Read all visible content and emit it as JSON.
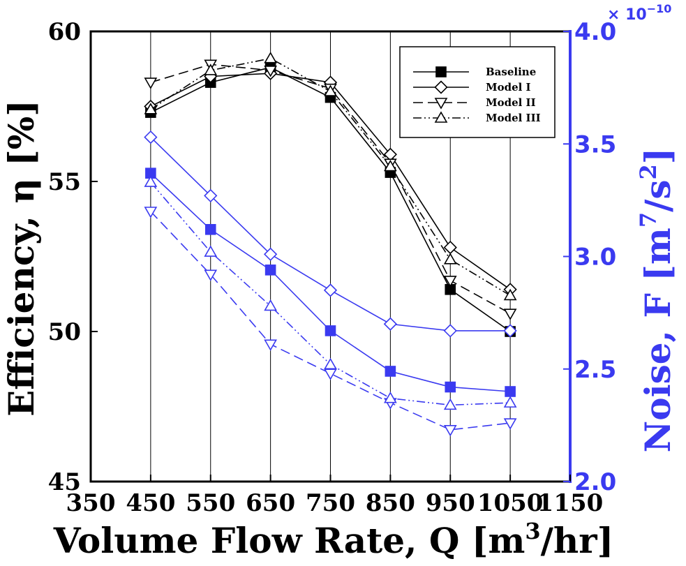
{
  "chart_data": {
    "type": "line",
    "x": [
      450,
      550,
      650,
      750,
      850,
      950,
      1050
    ],
    "xlabel": "Volume Flow Rate, Q [m³/hr]",
    "xlabel_parts": {
      "main": "Volume Flow Rate, Q [m",
      "sup": "3",
      "tail": "/hr]"
    },
    "xlim": [
      350,
      1150
    ],
    "xticks": [
      350,
      450,
      550,
      650,
      750,
      850,
      950,
      1050,
      1150
    ],
    "xtick_labels": [
      "350",
      "450",
      "550",
      "650",
      "750",
      "850",
      "950",
      "1050",
      "1150"
    ],
    "y_left": {
      "label": "Efficiency, η [%]",
      "lim": [
        45,
        60
      ],
      "ticks": [
        45,
        50,
        55,
        60
      ],
      "tick_labels": [
        "45",
        "50",
        "55",
        "60"
      ],
      "color": "#000000"
    },
    "y_right": {
      "label": "Noise, F [m⁷/s²]",
      "label_parts": {
        "main": "Noise, F [m",
        "sup1": "7",
        "mid": "/s",
        "sup2": "2",
        "tail": "]"
      },
      "lim": [
        2.0,
        4.0
      ],
      "ticks": [
        2.0,
        2.5,
        3.0,
        3.5,
        4.0
      ],
      "tick_labels": [
        "2.0",
        "2.5",
        "3.0",
        "3.5",
        "4.0"
      ],
      "multiplier_label": "× 10",
      "multiplier_exponent": "−10",
      "color": "#3a3af0"
    },
    "grid": "vertical",
    "legend_position": "top-right",
    "legend": [
      "Baseline",
      "Model I",
      "Model II",
      "Model III"
    ],
    "series": [
      {
        "name": "Baseline",
        "axis": "left",
        "marker": "filled-square",
        "dash": "solid",
        "color": "#000000",
        "values": [
          57.3,
          58.3,
          58.8,
          57.8,
          55.3,
          51.4,
          50.0
        ]
      },
      {
        "name": "Model I",
        "axis": "left",
        "marker": "diamond",
        "dash": "solid",
        "color": "#000000",
        "values": [
          57.5,
          58.5,
          58.6,
          58.3,
          55.9,
          52.8,
          51.4
        ]
      },
      {
        "name": "Model II",
        "axis": "left",
        "marker": "triangle-down",
        "dash": "dashed",
        "color": "#000000",
        "values": [
          58.3,
          58.9,
          58.7,
          58.1,
          55.6,
          51.7,
          50.6
        ]
      },
      {
        "name": "Model III",
        "axis": "left",
        "marker": "triangle-up",
        "dash": "dashdotdot",
        "color": "#000000",
        "values": [
          57.4,
          58.7,
          59.1,
          58.0,
          55.5,
          52.4,
          51.2
        ]
      },
      {
        "name": "Baseline",
        "axis": "right",
        "marker": "filled-square",
        "dash": "solid",
        "color": "#3a3af0",
        "values": [
          3.37,
          3.12,
          2.94,
          2.67,
          2.49,
          2.42,
          2.4
        ]
      },
      {
        "name": "Model I",
        "axis": "right",
        "marker": "diamond",
        "dash": "solid",
        "color": "#3a3af0",
        "values": [
          3.53,
          3.27,
          3.01,
          2.85,
          2.7,
          2.67,
          2.67
        ]
      },
      {
        "name": "Model II",
        "axis": "right",
        "marker": "triangle-down",
        "dash": "dashed",
        "color": "#3a3af0",
        "values": [
          3.2,
          2.92,
          2.61,
          2.48,
          2.35,
          2.23,
          2.26
        ]
      },
      {
        "name": "Model III",
        "axis": "right",
        "marker": "triangle-up",
        "dash": "dashdotdot",
        "color": "#3a3af0",
        "values": [
          3.33,
          3.02,
          2.78,
          2.52,
          2.37,
          2.34,
          2.35
        ]
      }
    ]
  }
}
